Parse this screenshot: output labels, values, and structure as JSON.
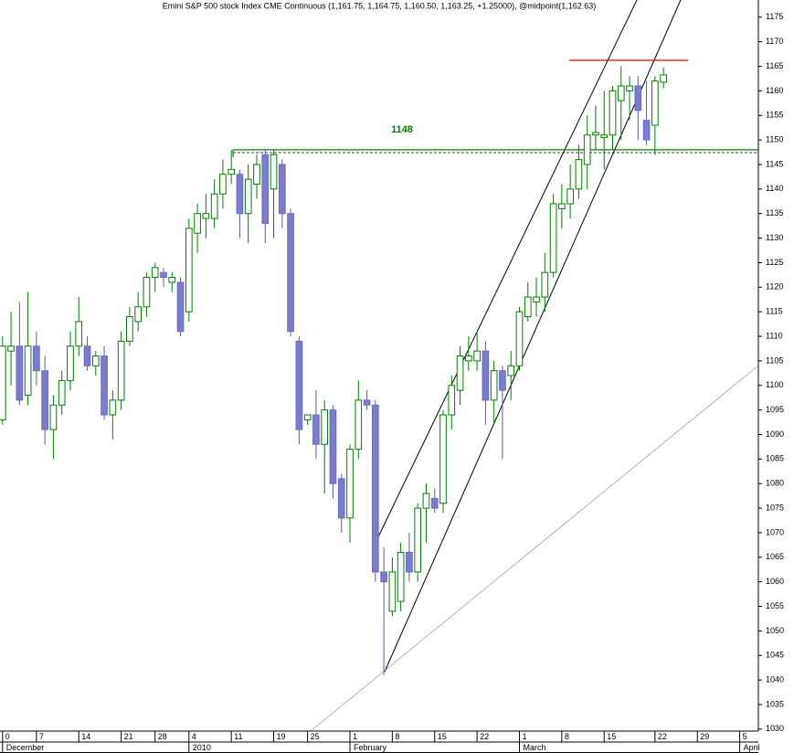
{
  "chart_data": {
    "type": "candlestick",
    "title": "Emini S&P 500 stock Index CME Continuous (1,161.75, 1,164.75, 1,160.50, 1,163.25, +1.25000), @midpoint(1,162.63)",
    "categories": [
      null,
      null,
      null,
      null,
      null,
      null,
      null,
      null,
      null,
      null,
      null,
      null,
      null,
      null,
      null,
      null,
      null,
      null,
      null,
      null,
      null,
      null,
      null,
      null,
      null,
      null,
      null,
      null,
      null,
      null,
      null,
      null,
      null,
      null,
      null,
      null,
      null,
      null,
      null,
      null,
      null,
      null,
      null,
      null,
      null,
      null,
      null,
      null,
      null,
      null,
      null,
      null,
      null,
      null,
      null,
      null,
      null,
      null,
      null,
      null,
      null,
      null,
      null,
      null,
      null,
      null,
      null,
      null,
      null,
      null,
      null,
      null,
      null,
      null,
      null,
      null,
      null,
      null,
      null
    ],
    "open": [
      1093,
      1107,
      1108,
      1098,
      1108,
      1103,
      1091,
      1096,
      1101,
      1108,
      1108,
      1104,
      1106,
      1094,
      1097,
      1109,
      1113,
      1116,
      1122,
      1123,
      1121,
      1121,
      1115,
      1131,
      1134,
      1134,
      1139,
      1143,
      1143,
      1135,
      1141,
      1147,
      1140,
      1145,
      1135,
      1109,
      1093,
      1094,
      1088,
      1095,
      1081,
      1073,
      1087,
      1097,
      1096,
      1062,
      1054,
      1056,
      1066,
      1062,
      1075,
      1077,
      1076,
      1094,
      1099,
      1105,
      1105,
      1107,
      1097,
      1103,
      1102,
      1104,
      1114,
      1117,
      1118,
      1123,
      1136,
      1137,
      1140,
      1145,
      1151,
      1150.5,
      1151,
      1158,
      1160,
      1161,
      1154,
      1153,
      1161.75
    ],
    "high": [
      1110,
      1115,
      1117,
      1119,
      1111,
      1106,
      1098,
      1103,
      1111,
      1118,
      1110,
      1107,
      1108,
      1099,
      1111,
      1116,
      1119,
      1123,
      1125,
      1124,
      1123,
      1122,
      1134,
      1137,
      1139,
      1142,
      1146,
      1148,
      1144,
      1145,
      1147,
      1148,
      1148,
      1146,
      1136,
      1110,
      1094,
      1099,
      1097,
      1096,
      1082,
      1088,
      1101,
      1099,
      1097,
      1067,
      1065,
      1068,
      1070,
      1076,
      1080,
      1079,
      1095,
      1102,
      1108,
      1110,
      1111,
      1109,
      1105,
      1104,
      1107,
      1116,
      1121,
      1122,
      1127,
      1139,
      1141,
      1145,
      1149,
      1155,
      1157,
      1160,
      1161,
      1165,
      1163,
      1163,
      1162,
      1163,
      1164.75
    ],
    "low": [
      1092,
      1100,
      1096,
      1096,
      1100,
      1088,
      1085,
      1094,
      1099,
      1106,
      1103,
      1102,
      1093,
      1089,
      1095,
      1108,
      1111,
      1114,
      1119,
      1120,
      1119,
      1110,
      1113,
      1127,
      1130,
      1132,
      1136,
      1141,
      1130,
      1129,
      1138,
      1129,
      1130,
      1132,
      1110,
      1088,
      1092,
      1085,
      1078,
      1077,
      1070,
      1068,
      1085,
      1095,
      1060,
      1041,
      1053,
      1054,
      1060,
      1060,
      1068,
      1074,
      1074,
      1091,
      1096,
      1103,
      1103,
      1092,
      1092,
      1085,
      1097,
      1103,
      1113,
      1114,
      1115,
      1122,
      1132,
      1134,
      1138,
      1140,
      1148,
      1144,
      1148,
      1150,
      1154,
      1150,
      1149,
      1147,
      1160.5
    ],
    "close": [
      1108,
      1108,
      1097,
      1108,
      1103,
      1091,
      1096,
      1101,
      1108,
      1113,
      1104,
      1106,
      1094,
      1097,
      1109,
      1114,
      1116,
      1122,
      1124,
      1122,
      1122,
      1111,
      1132,
      1135,
      1135,
      1139,
      1143,
      1144,
      1135,
      1142,
      1145,
      1133,
      1147,
      1135,
      1111,
      1091,
      1094,
      1088,
      1095,
      1080,
      1073,
      1087,
      1097,
      1096,
      1062,
      1060,
      1062,
      1066,
      1062,
      1075,
      1078,
      1075,
      1094,
      1100,
      1106,
      1106,
      1107,
      1097,
      1103,
      1099,
      1104,
      1115,
      1118,
      1118,
      1123,
      1137,
      1137,
      1140,
      1146,
      1151,
      1151.5,
      1151,
      1160,
      1161,
      1161,
      1156,
      1150,
      1162,
      1163.25
    ],
    "up_color": "#008000",
    "down_color": "#7b7bd0",
    "xlim": [
      -0.3,
      89.2
    ],
    "ylim": [
      1029.6,
      1178.5
    ],
    "yticks": [
      1030,
      1035,
      1040,
      1045,
      1050,
      1055,
      1060,
      1065,
      1070,
      1075,
      1080,
      1085,
      1090,
      1095,
      1100,
      1105,
      1110,
      1115,
      1120,
      1125,
      1130,
      1135,
      1140,
      1145,
      1150,
      1155,
      1160,
      1165,
      1170,
      1175
    ],
    "xticks": [
      {
        "value": 0,
        "label": "0"
      },
      {
        "value": 4,
        "label": "7"
      },
      {
        "value": 9,
        "label": "14"
      },
      {
        "value": 14,
        "label": "21"
      },
      {
        "value": 18,
        "label": "28"
      },
      {
        "value": 22,
        "label": "4"
      },
      {
        "value": 27,
        "label": "11"
      },
      {
        "value": 32,
        "label": "19"
      },
      {
        "value": 36,
        "label": "25"
      },
      {
        "value": 41,
        "label": "1"
      },
      {
        "value": 46,
        "label": "8"
      },
      {
        "value": 51,
        "label": "15"
      },
      {
        "value": 56,
        "label": "22"
      },
      {
        "value": 61,
        "label": "1"
      },
      {
        "value": 66,
        "label": "8"
      },
      {
        "value": 71,
        "label": "15"
      },
      {
        "value": 77,
        "label": "22"
      },
      {
        "value": 82,
        "label": "29"
      },
      {
        "value": 87,
        "label": "5"
      }
    ],
    "month_labels": [
      {
        "value": 0,
        "label": "December"
      },
      {
        "value": 22,
        "label": "2010"
      },
      {
        "value": 41,
        "label": "February"
      },
      {
        "value": 61,
        "label": "March"
      },
      {
        "value": 87,
        "label": "April"
      }
    ],
    "reference_line": {
      "value": 1148,
      "color": "#008000"
    }
  }
}
